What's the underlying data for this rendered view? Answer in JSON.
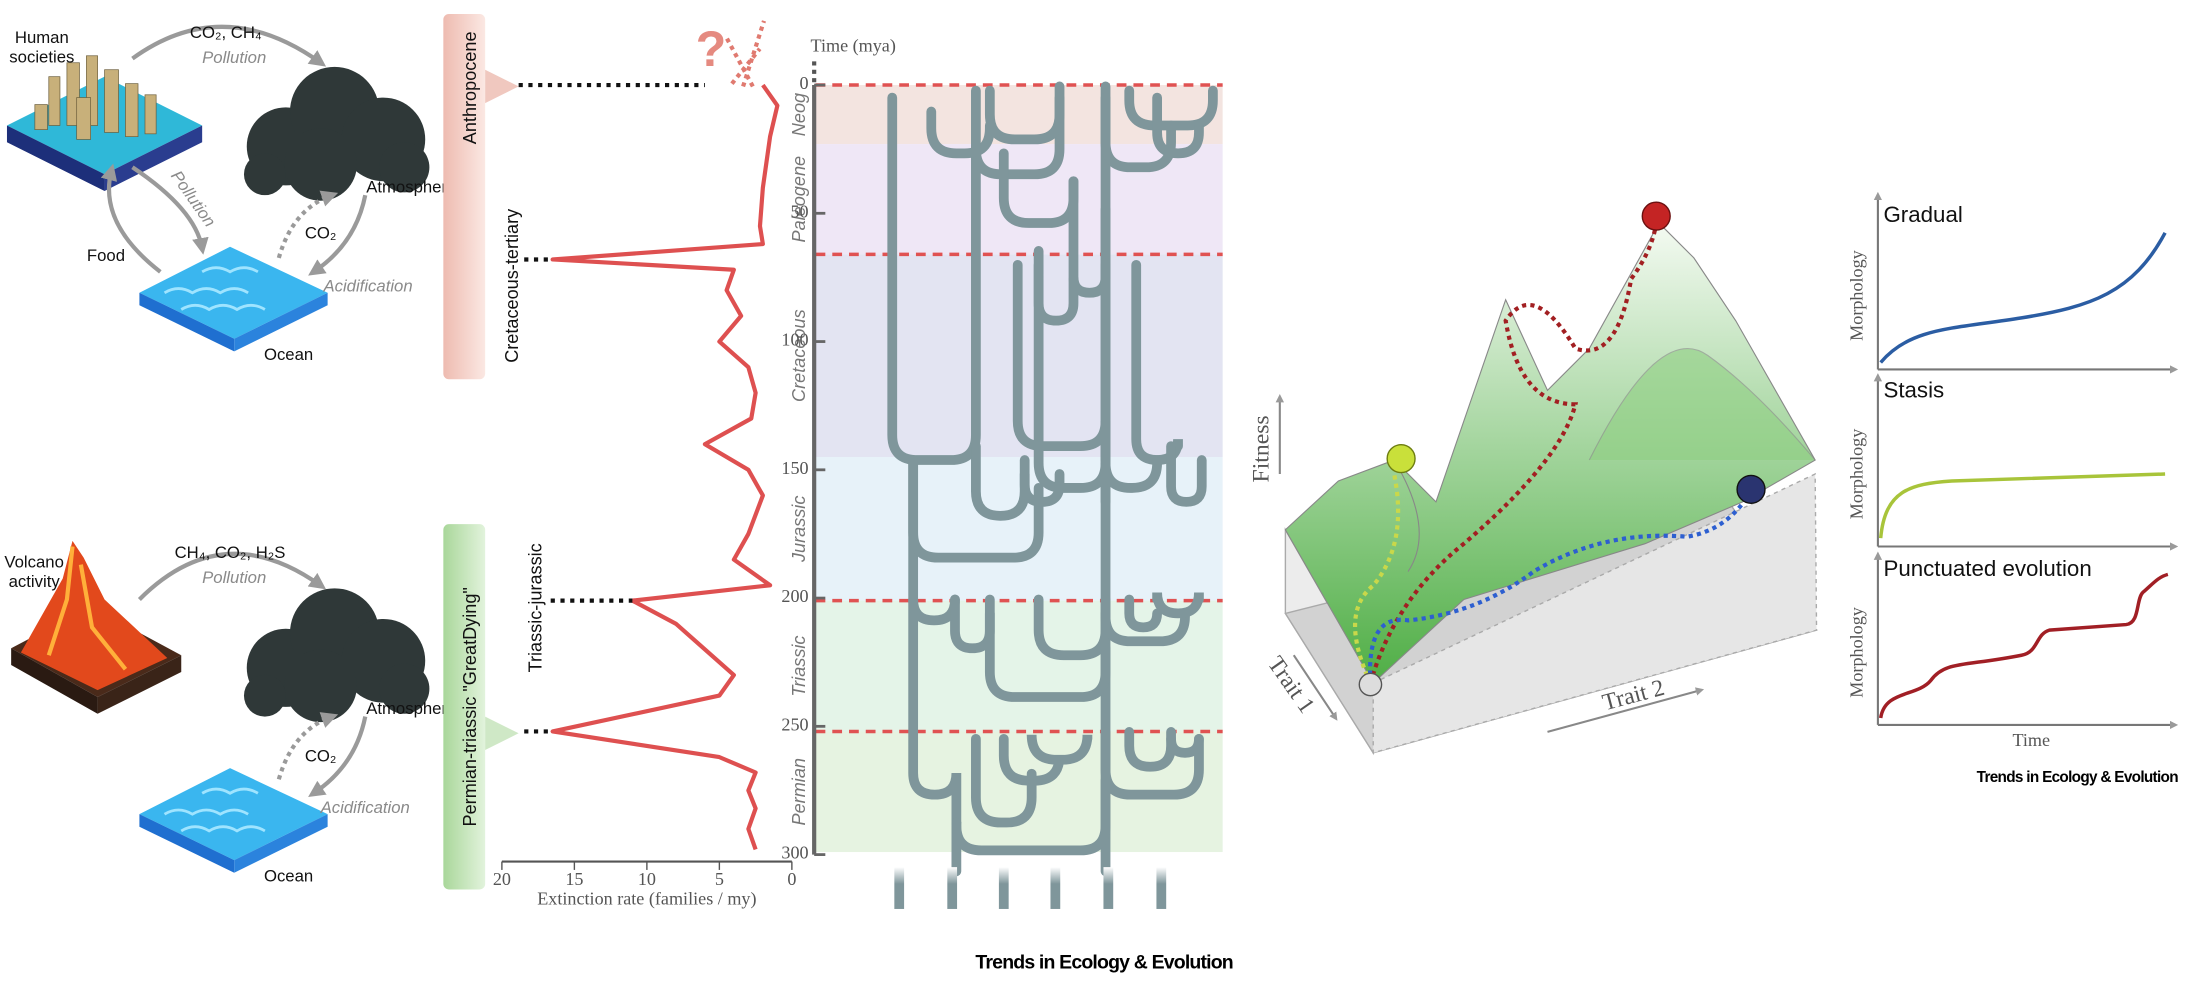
{
  "cycles": [
    {
      "source": "Human societies",
      "source_to_atmosphere": "CO₂, CH₄",
      "source_to_atmosphere_note": "Pollution",
      "atmosphere": "Atmosphere",
      "source_to_ocean_note": "Pollution",
      "ocean_to_source": "Food",
      "atmosphere_ocean": "CO₂",
      "ocean_note": "Acidification",
      "ocean": "Ocean"
    },
    {
      "source": "Volcano activity",
      "source_to_atmosphere": "CH₄, CO₂, H₂S",
      "source_to_atmosphere_note": "Pollution",
      "atmosphere": "Atmosphere",
      "atmosphere_ocean": "CO₂",
      "ocean_note": "Acidification",
      "ocean": "Ocean"
    }
  ],
  "events": [
    {
      "label": "Anthropocene",
      "time": 0,
      "rate": 6
    },
    {
      "label": "Cretaceous-tertiary",
      "time": 68,
      "rate": 16.5
    },
    {
      "label": "Triassic-jurassic",
      "time": 201,
      "rate": 11
    },
    {
      "label": "Permian-triassic \"GreatDying\"",
      "time": 252,
      "rate": 16.5
    }
  ],
  "extinction_chart": {
    "type": "line",
    "annotation": "?",
    "x_label": "Extinction rate (families / my)",
    "y_label": "Time (mya)",
    "xlim": [
      20,
      0
    ],
    "xticks": [
      20,
      15,
      10,
      5,
      0
    ],
    "ylim": [
      0,
      300
    ],
    "yticks": [
      0,
      50,
      100,
      150,
      200,
      250,
      300
    ],
    "color": "#de5050",
    "time": [
      0,
      8,
      20,
      40,
      55,
      62,
      68,
      72,
      80,
      90,
      100,
      110,
      120,
      130,
      140,
      150,
      160,
      175,
      185,
      195,
      201,
      210,
      230,
      238,
      252,
      262,
      268,
      275,
      282,
      290,
      298
    ],
    "rate": [
      2,
      1,
      1.5,
      2,
      2.2,
      2,
      16.5,
      4,
      4.5,
      3.5,
      5,
      3,
      2.5,
      2.8,
      6,
      3,
      2,
      3,
      4,
      1.5,
      11,
      8,
      4,
      5,
      16.5,
      5,
      2.5,
      3,
      2.5,
      3,
      2.5
    ],
    "periods": [
      {
        "name": "Neog",
        "start": 0,
        "end": 23,
        "color": "#f3e4e0"
      },
      {
        "name": "Paleogene",
        "start": 23,
        "end": 66,
        "color": "#efe7f6"
      },
      {
        "name": "Cretaceous",
        "start": 66,
        "end": 145,
        "color": "#e3e4f2"
      },
      {
        "name": "Jurassic",
        "start": 145,
        "end": 201,
        "color": "#e7f2f9"
      },
      {
        "name": "Triassic",
        "start": 201,
        "end": 252,
        "color": "#e4f4e8"
      },
      {
        "name": "Permian",
        "start": 252,
        "end": 299,
        "color": "#e6f3e1"
      }
    ],
    "boundaries": [
      0,
      66,
      201,
      252
    ]
  },
  "landscape": {
    "y_label": "Fitness",
    "x_label": "Trait 2",
    "z_label": "Trait 1"
  },
  "modes": {
    "panels": [
      {
        "title": "Gradual"
      },
      {
        "title": "Stasis"
      },
      {
        "title": "Punctuated evolution"
      }
    ],
    "y_label": "Morphology",
    "x_label": "Time",
    "credit": "Trends in Ecology & Evolution"
  },
  "credit": "Trends in Ecology & Evolution"
}
